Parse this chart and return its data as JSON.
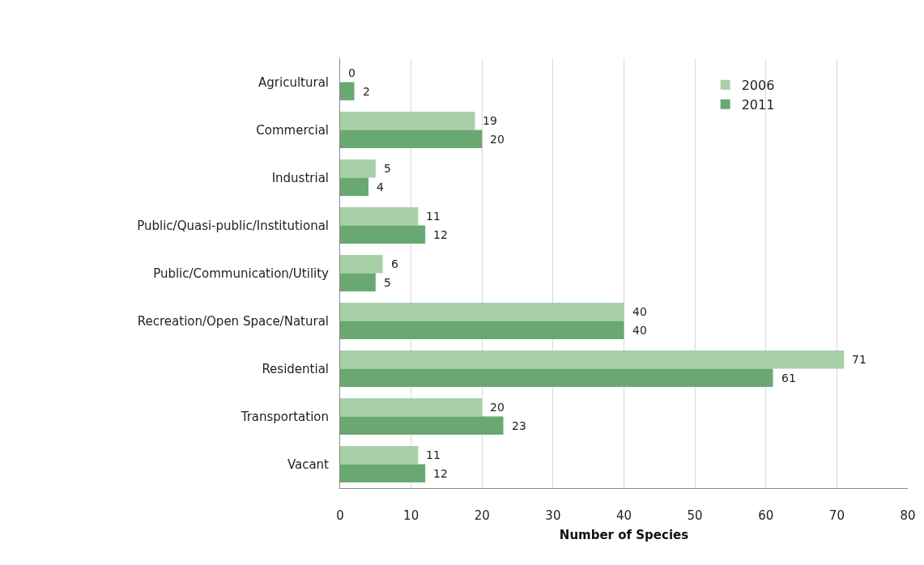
{
  "chart_data": {
    "type": "bar",
    "orientation": "horizontal",
    "xlabel": "Number of Species",
    "categories": [
      "Agricultural",
      "Commercial",
      "Industrial",
      "Public/Quasi-public/Institutional",
      "Public/Communication/Utility",
      "Recreation/Open Space/Natural",
      "Residential",
      "Transportation",
      "Vacant"
    ],
    "series": [
      {
        "name": "2006",
        "color": "#a9cfa9",
        "values": [
          0,
          19,
          5,
          11,
          6,
          40,
          71,
          20,
          11
        ]
      },
      {
        "name": "2011",
        "color": "#6aa872",
        "values": [
          2,
          20,
          4,
          12,
          5,
          40,
          61,
          23,
          12
        ]
      }
    ],
    "xlim": [
      0,
      80
    ],
    "xticks": [
      0,
      10,
      20,
      30,
      40,
      50,
      60,
      70,
      80
    ],
    "grid": "x",
    "legend": "top right",
    "data_labels": true
  }
}
